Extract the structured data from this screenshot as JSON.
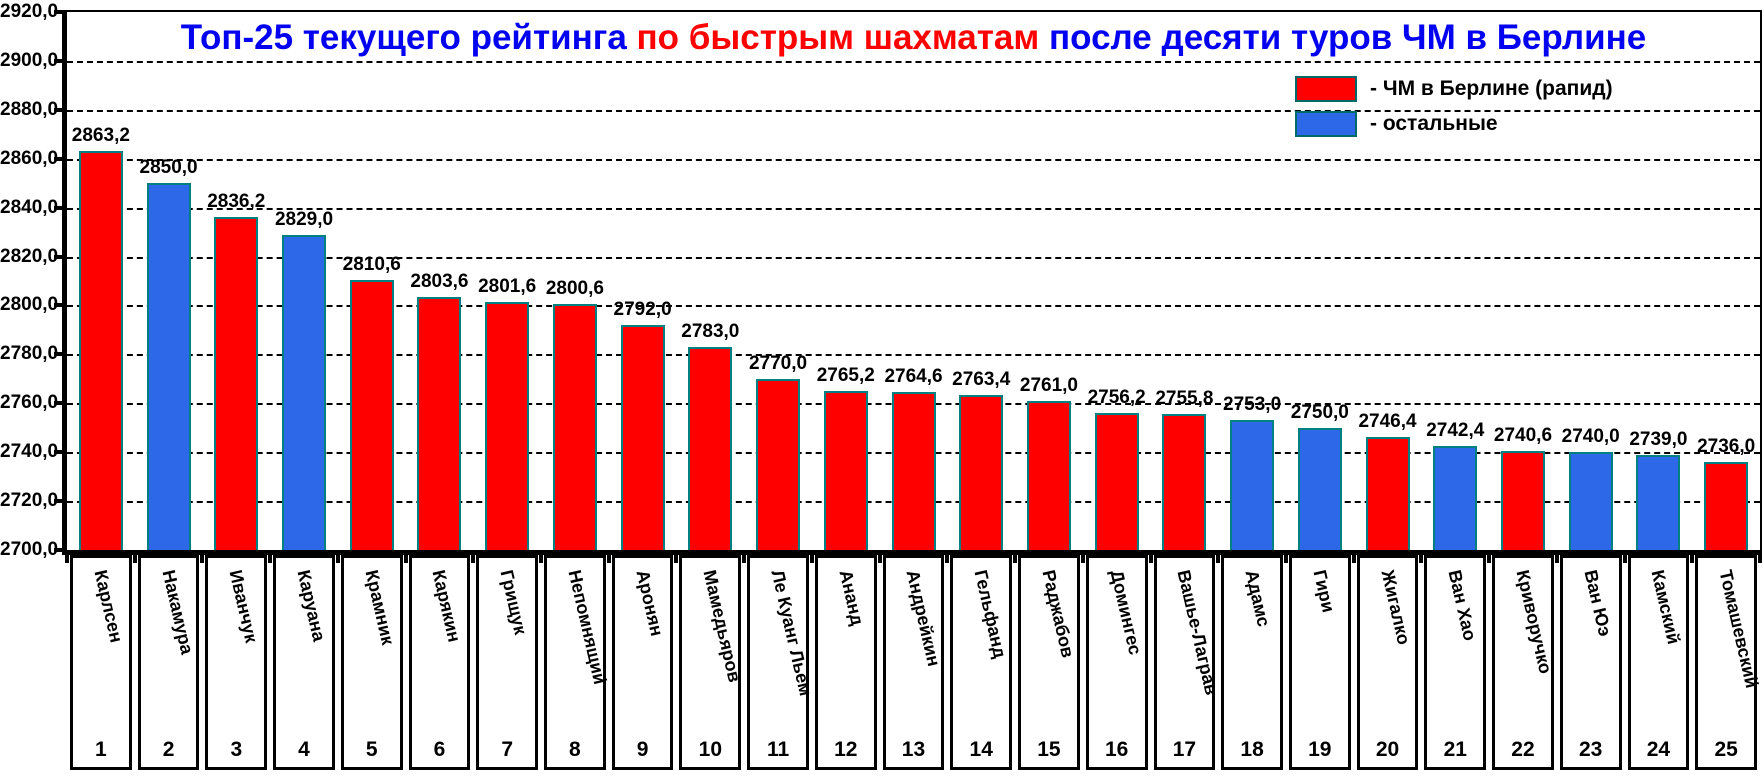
{
  "title": {
    "part1": "Топ-25 текущего рейтинга ",
    "part2": "по быстрым шахматам",
    "part3": " после десяти туров ЧМ в Берлине"
  },
  "colors": {
    "berlin": "#ff0000",
    "other": "#2d68e9",
    "bar_border": "#008080",
    "title_blue": "#0202f0",
    "title_red": "#ff0000",
    "grid": "#000000"
  },
  "legend": [
    {
      "key": "berlin",
      "label": "- ЧМ в Берлине (рапид)"
    },
    {
      "key": "other",
      "label": "- остальные"
    }
  ],
  "chart_data": {
    "type": "bar",
    "title": "Топ-25 текущего рейтинга по быстрым шахматам после десяти туров ЧМ в Берлине",
    "xlabel": "",
    "ylabel": "",
    "ylim": [
      2700,
      2920
    ],
    "ytick_step": 20,
    "ytick_labels": [
      "2920,0",
      "2900,0",
      "2880,0",
      "2860,0",
      "2840,0",
      "2820,0",
      "2800,0",
      "2780,0",
      "2760,0",
      "2740,0",
      "2720,0",
      "2700,0"
    ],
    "grid": "horizontal-dashed",
    "legend_position": "top-right",
    "categories": [
      "Карлсен",
      "Накамура",
      "Иванчук",
      "Каруана",
      "Крамник",
      "Карякин",
      "Грищук",
      "Непомнящий",
      "Аронян",
      "Мамедьяров",
      "Ле Куанг Льем",
      "Ананд",
      "Андрейкин",
      "Гельфанд",
      "Раджабов",
      "Домингес",
      "Вашье-Лаграв",
      "Адамс",
      "Гири",
      "Жигалко",
      "Ван Хао",
      "Криворучко",
      "Ван Юэ",
      "Камский",
      "Томашевский"
    ],
    "ranks": [
      "1",
      "2",
      "3",
      "4",
      "5",
      "6",
      "7",
      "8",
      "9",
      "10",
      "11",
      "12",
      "13",
      "14",
      "15",
      "16",
      "17",
      "18",
      "19",
      "20",
      "21",
      "22",
      "23",
      "24",
      "25"
    ],
    "values": [
      2863.2,
      2850.0,
      2836.2,
      2829.0,
      2810.6,
      2803.6,
      2801.6,
      2800.6,
      2792.0,
      2783.0,
      2770.0,
      2765.2,
      2764.6,
      2763.4,
      2761.0,
      2756.2,
      2755.8,
      2753.0,
      2750.0,
      2746.4,
      2742.4,
      2740.6,
      2740.0,
      2739.0,
      2736.0
    ],
    "value_labels": [
      "2863,2",
      "2850,0",
      "2836,2",
      "2829,0",
      "2810,6",
      "2803,6",
      "2801,6",
      "2800,6",
      "2792,0",
      "2783,0",
      "2770,0",
      "2765,2",
      "2764,6",
      "2763,4",
      "2761,0",
      "2756,2",
      "2755,8",
      "2753,0",
      "2750,0",
      "2746,4",
      "2742,4",
      "2740,6",
      "2740,0",
      "2739,0",
      "2736,0"
    ],
    "groups": [
      "berlin",
      "other",
      "berlin",
      "other",
      "berlin",
      "berlin",
      "berlin",
      "berlin",
      "berlin",
      "berlin",
      "berlin",
      "berlin",
      "berlin",
      "berlin",
      "berlin",
      "berlin",
      "berlin",
      "other",
      "other",
      "berlin",
      "other",
      "berlin",
      "other",
      "other",
      "berlin"
    ]
  }
}
